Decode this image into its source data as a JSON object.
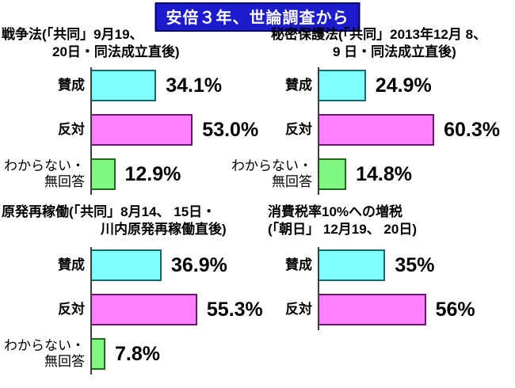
{
  "page_title": "安倍３年、世論調査から",
  "chart_data": {
    "type": "bar",
    "orientation": "horizontal",
    "unit": "%",
    "xlim": [
      0,
      65
    ],
    "legend": "none",
    "colors": {
      "agree": {
        "fill": "#80ffff",
        "border": "#156b6b"
      },
      "oppose": {
        "fill": "#ff80ff",
        "border": "#6b156b"
      },
      "unknown": {
        "fill": "#80f880",
        "border": "#1e6b1e"
      },
      "title_bg": "#1c1cce",
      "title_border": "#000066",
      "axis": "#3c3c3c"
    },
    "charts": [
      {
        "id": "war-law",
        "header_line1": "戦争法(「共同」9月19、",
        "header_line2": "20日・同法成立直後)",
        "bars": [
          {
            "label": "賛成",
            "value": 34.1,
            "display": "34.1%",
            "series": "agree"
          },
          {
            "label": "反対",
            "value": 53.0,
            "display": "53.0%",
            "series": "oppose"
          },
          {
            "label": "わからない・無回答",
            "label_line1": "わからない・",
            "label_line2": "無回答",
            "value": 12.9,
            "display": "12.9%",
            "series": "unknown"
          }
        ]
      },
      {
        "id": "secrets-protection-law",
        "header_line1": "秘密保護法(「共同」2013年12月 8、",
        "header_line2": "9 日・同法成立直後)",
        "bars": [
          {
            "label": "賛成",
            "value": 24.9,
            "display": "24.9%",
            "series": "agree"
          },
          {
            "label": "反対",
            "value": 60.3,
            "display": "60.3%",
            "series": "oppose"
          },
          {
            "label": "わからない・無回答",
            "label_line1": "わからない・",
            "label_line2": "無回答",
            "value": 14.8,
            "display": "14.8%",
            "series": "unknown"
          }
        ]
      },
      {
        "id": "nuclear-restart",
        "header_line1": "原発再稼働(「共同」8月14、 15日・",
        "header_line2": "川内原発再稼働直後)",
        "bars": [
          {
            "label": "賛成",
            "value": 36.9,
            "display": "36.9%",
            "series": "agree"
          },
          {
            "label": "反対",
            "value": 55.3,
            "display": "55.3%",
            "series": "oppose"
          },
          {
            "label": "わからない・無回答",
            "label_line1": "わからない・",
            "label_line2": "無回答",
            "value": 7.8,
            "display": "7.8%",
            "series": "unknown"
          }
        ]
      },
      {
        "id": "consumption-tax-increase",
        "header_line1": "消費税率10%への増税",
        "header_line2": "(「朝日」 12月19、 20日)",
        "bars": [
          {
            "label": "賛成",
            "value": 35,
            "display": "35%",
            "series": "agree"
          },
          {
            "label": "反対",
            "value": 56,
            "display": "56%",
            "series": "oppose"
          }
        ]
      }
    ]
  }
}
